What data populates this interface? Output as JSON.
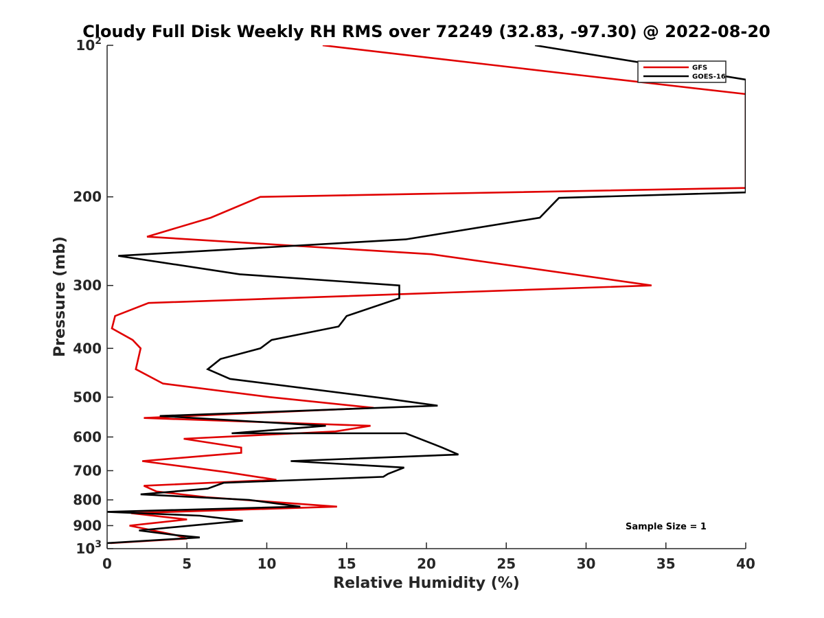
{
  "chart_data": {
    "type": "line",
    "title": "Cloudy Full Disk Weekly RH RMS over 72249 (32.83, -97.30) @ 2022-08-20",
    "xlabel": "Relative Humidity (%)",
    "ylabel": "Pressure (mb)",
    "xlim": [
      0,
      40
    ],
    "ylim": [
      100,
      1000
    ],
    "y_scale": "log",
    "y_reversed": true,
    "x_ticks": [
      "0",
      "5",
      "10",
      "15",
      "20",
      "25",
      "30",
      "35",
      "40"
    ],
    "x_tick_values": [
      0,
      5,
      10,
      15,
      20,
      25,
      30,
      35,
      40
    ],
    "y_ticks": [
      {
        "value": 100,
        "base": "10",
        "exp": "2"
      },
      {
        "value": 200,
        "base": "200",
        "exp": ""
      },
      {
        "value": 300,
        "base": "300",
        "exp": ""
      },
      {
        "value": 400,
        "base": "400",
        "exp": ""
      },
      {
        "value": 500,
        "base": "500",
        "exp": ""
      },
      {
        "value": 600,
        "base": "600",
        "exp": ""
      },
      {
        "value": 700,
        "base": "700",
        "exp": ""
      },
      {
        "value": 800,
        "base": "800",
        "exp": ""
      },
      {
        "value": 900,
        "base": "900",
        "exp": ""
      },
      {
        "value": 1000,
        "base": "10",
        "exp": "3"
      }
    ],
    "grid": false,
    "legend_position": "top-right",
    "series": [
      {
        "name": "GFS",
        "color": "#e00000",
        "points": [
          [
            13.5,
            100
          ],
          [
            30,
            115
          ],
          [
            40,
            125
          ],
          [
            40,
            192
          ],
          [
            9.6,
            200
          ],
          [
            6.5,
            220
          ],
          [
            2.5,
            240
          ],
          [
            20.3,
            260
          ],
          [
            34.1,
            300
          ],
          [
            2.6,
            325
          ],
          [
            0.5,
            345
          ],
          [
            0.3,
            365
          ],
          [
            1.6,
            385
          ],
          [
            2.1,
            400
          ],
          [
            1.8,
            440
          ],
          [
            3.5,
            470
          ],
          [
            10.2,
            500
          ],
          [
            16.7,
            525
          ],
          [
            2.3,
            550
          ],
          [
            16.5,
            570
          ],
          [
            14.3,
            585
          ],
          [
            4.8,
            605
          ],
          [
            8.4,
            630
          ],
          [
            8.4,
            645
          ],
          [
            2.2,
            670
          ],
          [
            7.5,
            705
          ],
          [
            10.6,
            730
          ],
          [
            2.3,
            750
          ],
          [
            3.1,
            770
          ],
          [
            6.2,
            790
          ],
          [
            14.4,
            825
          ],
          [
            1.5,
            850
          ],
          [
            5.0,
            875
          ],
          [
            1.4,
            900
          ],
          [
            4.3,
            940
          ],
          [
            5.0,
            955
          ],
          [
            0.2,
            975
          ]
        ]
      },
      {
        "name": "GOES-16",
        "color": "#000000",
        "points": [
          [
            26.8,
            100
          ],
          [
            40,
            117
          ],
          [
            40,
            196
          ],
          [
            28.3,
            201
          ],
          [
            27.1,
            220
          ],
          [
            18.7,
            243
          ],
          [
            0.7,
            262
          ],
          [
            8.3,
            285
          ],
          [
            18.3,
            300
          ],
          [
            18.3,
            318
          ],
          [
            15.0,
            345
          ],
          [
            14.5,
            362
          ],
          [
            10.3,
            385
          ],
          [
            9.6,
            400
          ],
          [
            7.1,
            420
          ],
          [
            6.3,
            440
          ],
          [
            7.7,
            460
          ],
          [
            17.4,
            503
          ],
          [
            20.7,
            520
          ],
          [
            3.3,
            545
          ],
          [
            13.7,
            570
          ],
          [
            7.8,
            590
          ],
          [
            18.7,
            590
          ],
          [
            21.0,
            630
          ],
          [
            22.0,
            650
          ],
          [
            11.5,
            670
          ],
          [
            18.6,
            690
          ],
          [
            17.6,
            710
          ],
          [
            17.3,
            720
          ],
          [
            7.3,
            740
          ],
          [
            6.3,
            760
          ],
          [
            2.1,
            780
          ],
          [
            8.9,
            800
          ],
          [
            12.1,
            825
          ],
          [
            0.0,
            845
          ],
          [
            5.8,
            860
          ],
          [
            8.5,
            880
          ],
          [
            2.0,
            920
          ],
          [
            4.3,
            940
          ],
          [
            5.8,
            950
          ],
          [
            0.0,
            975
          ]
        ]
      }
    ],
    "annotations": [
      "Sample Size = 1"
    ]
  }
}
